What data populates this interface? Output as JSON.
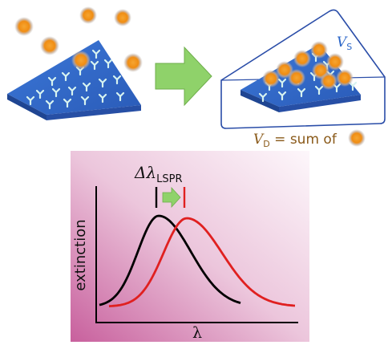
{
  "top": {
    "vs_label": {
      "base": "V",
      "sub": "S"
    },
    "vd_label": {
      "base": "V",
      "sub": "D",
      "rest": " = sum of "
    }
  },
  "plot": {
    "title": {
      "delta": "Δλ",
      "sub": "LSPR"
    },
    "ylabel": "extinction",
    "xlabel": "λ"
  },
  "colors": {
    "nanoprism": "#2f63c4",
    "nanoprism_dark": "#1f4592",
    "particle": "#f39a1c",
    "arrow_green": "#8fd26a",
    "shell_outline": "#2a4da8",
    "vs_text": "#2b66c8",
    "vd_text": "#8a5a1a",
    "curve_before": "#000000",
    "curve_after": "#e02020"
  },
  "icons": [
    "nanoprism-icon",
    "gold-particle-icon",
    "antibody-icon",
    "right-arrow-icon"
  ]
}
